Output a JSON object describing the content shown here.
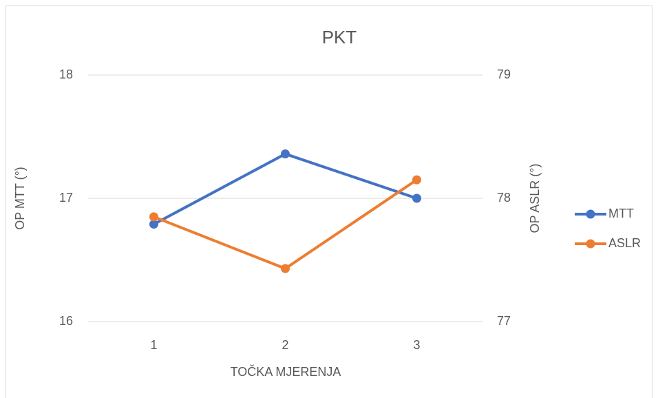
{
  "chart_data": {
    "type": "line",
    "title": "PKT",
    "x_label": "TOČKA MJERENJA",
    "y_label": "OP MTT (°)",
    "y2_label": "OP ASLR (°)",
    "categories": [
      "1",
      "2",
      "3"
    ],
    "series": [
      {
        "name": "MTT",
        "color": "#4472c4",
        "values": [
          16.79,
          17.36,
          17.0
        ]
      },
      {
        "name": "ASLR",
        "color": "#ed7d31",
        "axis": "y2",
        "values": [
          77.85,
          77.43,
          78.15
        ]
      }
    ],
    "ylim": [
      16,
      18
    ],
    "yticks": [
      16,
      17,
      18
    ],
    "y2lim": [
      77,
      79
    ],
    "y2ticks": [
      77,
      78,
      79
    ],
    "grid": true,
    "legend": "right"
  }
}
